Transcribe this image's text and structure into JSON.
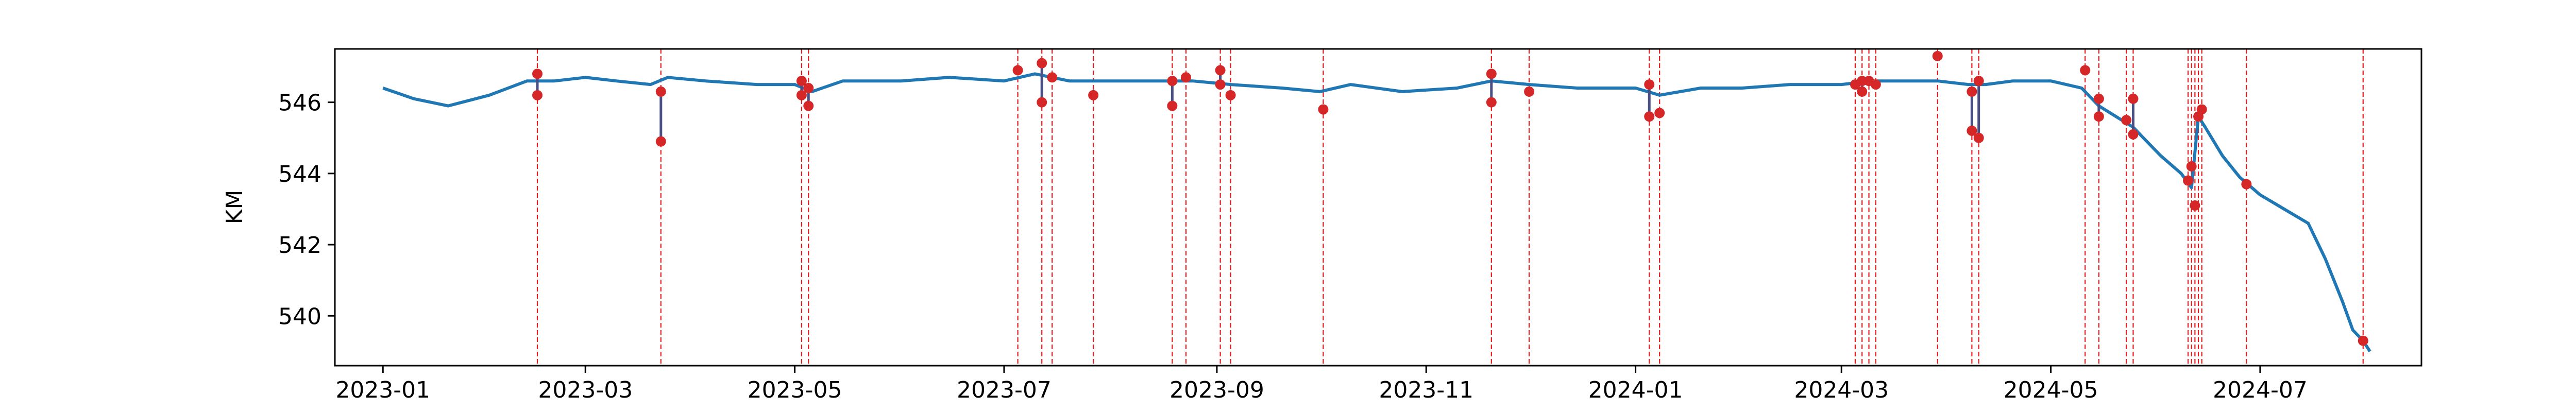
{
  "chart_data": {
    "type": "line",
    "title": "",
    "xlabel": "",
    "ylabel": "KM",
    "xlim": [
      "2022-12-18",
      "2024-08-17"
    ],
    "ylim": [
      538.6,
      547.5
    ],
    "grid": false,
    "legend": "none",
    "xticks": [
      "2023-01",
      "2023-03",
      "2023-05",
      "2023-07",
      "2023-09",
      "2023-11",
      "2024-01",
      "2024-03",
      "2024-05",
      "2024-07"
    ],
    "yticks": [
      540,
      542,
      544,
      546
    ],
    "colors": {
      "line": "#1f77b4",
      "event_line": "#e8191d",
      "event_marker": "#d62728"
    },
    "series": [
      {
        "x": [
          "2023-01-01",
          "2023-01-10",
          "2023-01-20",
          "2023-02-01",
          "2023-02-12",
          "2023-02-20",
          "2023-03-01",
          "2023-03-10",
          "2023-03-20",
          "2023-03-25",
          "2023-04-05",
          "2023-04-20",
          "2023-05-01",
          "2023-05-06",
          "2023-05-15",
          "2023-06-01",
          "2023-06-15",
          "2023-07-01",
          "2023-07-10",
          "2023-07-20",
          "2023-08-01",
          "2023-08-15",
          "2023-08-25",
          "2023-09-05",
          "2023-09-20",
          "2023-10-01",
          "2023-10-10",
          "2023-10-25",
          "2023-11-10",
          "2023-11-20",
          "2023-12-01",
          "2023-12-15",
          "2024-01-01",
          "2024-01-08",
          "2024-01-20",
          "2024-02-01",
          "2024-02-15",
          "2024-03-01",
          "2024-03-10",
          "2024-03-20",
          "2024-03-29",
          "2024-04-07",
          "2024-04-12",
          "2024-04-20",
          "2024-05-01",
          "2024-05-10",
          "2024-05-15",
          "2024-05-20",
          "2024-05-25",
          "2024-05-28",
          "2024-06-02",
          "2024-06-08",
          "2024-06-11",
          "2024-06-13",
          "2024-06-15",
          "2024-06-20",
          "2024-06-25",
          "2024-07-01",
          "2024-07-08",
          "2024-07-15",
          "2024-07-20",
          "2024-07-25",
          "2024-07-28",
          "2024-07-31",
          "2024-08-02"
        ],
        "values": [
          546.4,
          546.1,
          545.9,
          546.2,
          546.6,
          546.6,
          546.7,
          546.6,
          546.5,
          546.7,
          546.6,
          546.5,
          546.5,
          546.3,
          546.6,
          546.6,
          546.7,
          546.6,
          546.8,
          546.6,
          546.6,
          546.6,
          546.6,
          546.5,
          546.4,
          546.3,
          546.5,
          546.3,
          546.4,
          546.6,
          546.5,
          546.4,
          546.4,
          546.2,
          546.4,
          546.4,
          546.5,
          546.5,
          546.6,
          546.6,
          546.6,
          546.5,
          546.5,
          546.6,
          546.6,
          546.4,
          545.9,
          545.6,
          545.3,
          545.0,
          544.5,
          544.0,
          543.6,
          545.6,
          545.3,
          544.5,
          543.9,
          543.4,
          543.0,
          542.6,
          541.6,
          540.4,
          539.6,
          539.3,
          539.0
        ]
      }
    ],
    "events": [
      {
        "date": "2023-02-15",
        "values": [
          546.8,
          546.2
        ]
      },
      {
        "date": "2023-03-23",
        "values": [
          546.3,
          544.9
        ]
      },
      {
        "date": "2023-05-03",
        "values": [
          546.6,
          546.2
        ]
      },
      {
        "date": "2023-05-05",
        "values": [
          546.4,
          545.9
        ]
      },
      {
        "date": "2023-07-05",
        "values": [
          546.9
        ]
      },
      {
        "date": "2023-07-12",
        "values": [
          547.1,
          546.0
        ]
      },
      {
        "date": "2023-07-15",
        "values": [
          546.7
        ]
      },
      {
        "date": "2023-07-27",
        "values": [
          546.2
        ]
      },
      {
        "date": "2023-08-19",
        "values": [
          546.6,
          545.9
        ]
      },
      {
        "date": "2023-08-23",
        "values": [
          546.7
        ]
      },
      {
        "date": "2023-09-02",
        "values": [
          546.9,
          546.5
        ]
      },
      {
        "date": "2023-09-05",
        "values": [
          546.2
        ]
      },
      {
        "date": "2023-10-02",
        "values": [
          545.8
        ]
      },
      {
        "date": "2023-11-20",
        "values": [
          546.8,
          546.0
        ]
      },
      {
        "date": "2023-12-01",
        "values": [
          546.3
        ]
      },
      {
        "date": "2024-01-05",
        "values": [
          546.5,
          545.6
        ]
      },
      {
        "date": "2024-01-08",
        "values": [
          545.7
        ]
      },
      {
        "date": "2024-03-05",
        "values": [
          546.5
        ]
      },
      {
        "date": "2024-03-07",
        "values": [
          546.6,
          546.3
        ]
      },
      {
        "date": "2024-03-09",
        "values": [
          546.6
        ]
      },
      {
        "date": "2024-03-11",
        "values": [
          546.5
        ]
      },
      {
        "date": "2024-03-29",
        "values": [
          547.3
        ]
      },
      {
        "date": "2024-04-08",
        "values": [
          546.3,
          545.2
        ]
      },
      {
        "date": "2024-04-10",
        "values": [
          546.6,
          545.0
        ]
      },
      {
        "date": "2024-05-11",
        "values": [
          546.9
        ]
      },
      {
        "date": "2024-05-15",
        "values": [
          546.1,
          545.6
        ]
      },
      {
        "date": "2024-05-23",
        "values": [
          545.5
        ]
      },
      {
        "date": "2024-05-25",
        "values": [
          546.1,
          545.1
        ]
      },
      {
        "date": "2024-06-10",
        "values": [
          543.8
        ]
      },
      {
        "date": "2024-06-11",
        "values": [
          544.2
        ]
      },
      {
        "date": "2024-06-12",
        "values": [
          543.1
        ]
      },
      {
        "date": "2024-06-13",
        "values": [
          545.6
        ]
      },
      {
        "date": "2024-06-14",
        "values": [
          545.8
        ]
      },
      {
        "date": "2024-06-27",
        "values": [
          543.7
        ]
      },
      {
        "date": "2024-07-31",
        "values": [
          539.3
        ]
      }
    ]
  }
}
